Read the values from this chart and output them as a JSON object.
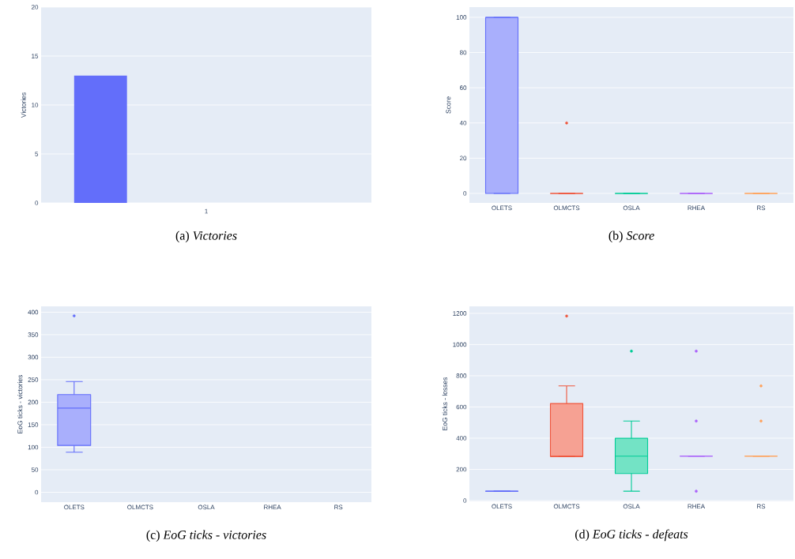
{
  "chart_data": [
    {
      "type": "bar",
      "title": "(a) *Victories*",
      "ylabel": "Victories",
      "categories": [
        "1"
      ],
      "series": [
        {
          "color": "#636efa",
          "values": [
            13
          ]
        },
        {
          "color": "#ef553b",
          "values": [
            0
          ]
        },
        {
          "color": "#00cc96",
          "values": [
            0
          ]
        },
        {
          "color": "#ab63fa",
          "values": [
            0
          ]
        },
        {
          "color": "#ffa15a",
          "values": [
            0
          ]
        }
      ],
      "ylim": [
        0,
        20
      ],
      "yticks": [
        0,
        5,
        10,
        15,
        20
      ],
      "grid": "y"
    },
    {
      "type": "box",
      "title": "(b) *Score*",
      "ylabel": "Score",
      "categories": [
        "OLETS",
        "OLMCTS",
        "OSLA",
        "RHEA",
        "RS"
      ],
      "boxes": [
        {
          "low": 0,
          "q1": 0,
          "median": 100,
          "q3": 100,
          "high": 100
        },
        {
          "low": 0,
          "q1": 0,
          "median": 0,
          "q3": 0,
          "high": 0,
          "outliers": [
            40
          ]
        },
        {
          "low": 0,
          "q1": 0,
          "median": 0,
          "q3": 0,
          "high": 0
        },
        {
          "low": 0,
          "q1": 0,
          "median": 0,
          "q3": 0,
          "high": 0
        },
        {
          "low": 0,
          "q1": 0,
          "median": 0,
          "q3": 0,
          "high": 0
        }
      ],
      "colors": [
        "#636efa",
        "#ef553b",
        "#00cc96",
        "#ab63fa",
        "#ffa15a"
      ],
      "ylim": [
        -5.4,
        105.8
      ],
      "yticks": [
        0,
        20,
        40,
        60,
        80,
        100
      ],
      "grid": "y"
    },
    {
      "type": "box",
      "title": "(c) *EoG ticks - victories*",
      "ylabel": "EoG ticks - victories",
      "categories": [
        "OLETS",
        "OLMCTS",
        "OSLA",
        "RHEA",
        "RS"
      ],
      "boxes": [
        {
          "low": 89,
          "q1": 104,
          "median": 187,
          "q3": 217,
          "high": 246,
          "outliers": [
            392
          ]
        },
        null,
        null,
        null,
        null
      ],
      "colors": [
        "#636efa",
        null,
        null,
        null,
        null
      ],
      "ylim": [
        -22,
        413
      ],
      "yticks": [
        0,
        50,
        100,
        150,
        200,
        250,
        300,
        350,
        400
      ],
      "grid": "y"
    },
    {
      "type": "box",
      "title": "(d) *EoG ticks - defeats*",
      "ylabel": "EoG ticks - losses",
      "categories": [
        "OLETS",
        "OLMCTS",
        "OSLA",
        "RHEA",
        "RS"
      ],
      "boxes": [
        {
          "low": 60,
          "q1": 60,
          "median": 60,
          "q3": 60,
          "high": 60
        },
        {
          "low": 283,
          "q1": 283,
          "median": 283,
          "q3": 622,
          "high": 735,
          "outliers": [
            1183
          ]
        },
        {
          "low": 60,
          "q1": 173,
          "median": 285,
          "q3": 399,
          "high": 510,
          "outliers": [
            958
          ]
        },
        {
          "low": 285,
          "q1": 285,
          "median": 285,
          "q3": 285,
          "high": 285,
          "outliers": [
            60,
            510,
            958
          ]
        },
        {
          "low": 285,
          "q1": 285,
          "median": 285,
          "q3": 285,
          "high": 285,
          "outliers": [
            510,
            735
          ]
        }
      ],
      "colors": [
        "#636efa",
        "#ef553b",
        "#00cc96",
        "#ab63fa",
        "#ffa15a"
      ],
      "ylim": [
        -5,
        1245
      ],
      "yticks": [
        0,
        200,
        400,
        600,
        800,
        1000,
        1200
      ],
      "grid": "y"
    }
  ]
}
